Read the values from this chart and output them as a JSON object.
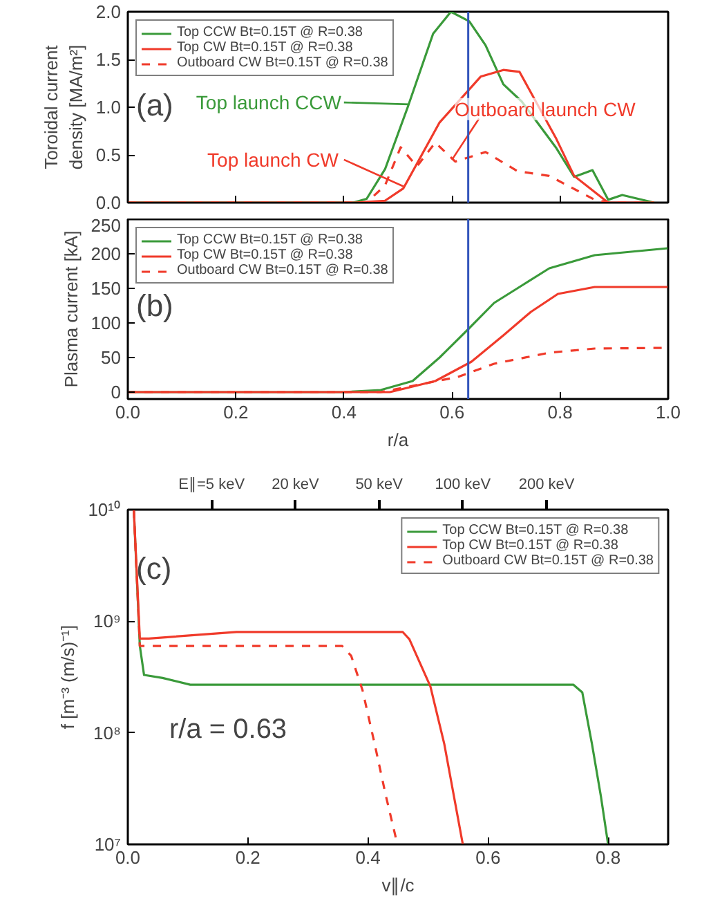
{
  "chart_data": [
    {
      "type": "line",
      "ylabel": "Toroidal current\ndensity [MA/m²]",
      "xlim": [
        0,
        1
      ],
      "ylim": [
        0,
        2.0
      ],
      "xticks": [
        0,
        0.2,
        0.4,
        0.6,
        0.8,
        1
      ],
      "yticks": [
        {
          "value": 0,
          "label": "0.0"
        },
        {
          "value": 0.5,
          "label": "0.5"
        },
        {
          "value": 1,
          "label": "1.0"
        },
        {
          "value": 1.5,
          "label": "1.5"
        },
        {
          "value": 2,
          "label": "2.0"
        }
      ],
      "tick_labels": "y",
      "legend": "top left",
      "grid": false,
      "series": [
        {
          "name": "Top CCW Bt=0.15T @ R=0.38",
          "color": "#3a9a3a",
          "line_style": "solid",
          "x": [
            0,
            0.417,
            0.442,
            0.476,
            0.518,
            0.565,
            0.598,
            0.632,
            0.662,
            0.695,
            0.729,
            0.792,
            0.826,
            0.86,
            0.889,
            0.915,
            0.974
          ],
          "values": [
            0,
            0,
            0.04,
            0.35,
            1.0,
            1.77,
            2.0,
            1.9,
            1.65,
            1.24,
            1.06,
            0.58,
            0.27,
            0.34,
            0.03,
            0.08,
            0
          ]
        },
        {
          "name": "Top CW Bt=0.15T @ R=0.38",
          "color": "#f03a2a",
          "line_style": "solid",
          "x": [
            0,
            0.42,
            0.476,
            0.51,
            0.577,
            0.653,
            0.695,
            0.725,
            0.792,
            0.826,
            0.889,
            0.974
          ],
          "values": [
            0,
            0,
            0.02,
            0.15,
            0.84,
            1.32,
            1.39,
            1.37,
            0.68,
            0.28,
            0,
            0
          ]
        },
        {
          "name": "Outboard CW Bt=0.15T @ R=0.38",
          "color": "#f03a2a",
          "line_style": "dashed",
          "x": [
            0,
            0.442,
            0.476,
            0.505,
            0.535,
            0.569,
            0.606,
            0.662,
            0.721,
            0.78,
            0.864,
            0.889,
            0.974
          ],
          "values": [
            0,
            0,
            0.18,
            0.58,
            0.38,
            0.63,
            0.43,
            0.53,
            0.33,
            0.28,
            0.03,
            0,
            0
          ]
        }
      ],
      "ref_lines": [
        {
          "axis": "x",
          "value": 0.63,
          "color": "#3355bb"
        }
      ],
      "annotations": [
        "(a)",
        "Top launch CCW",
        {
          "text": "Top launch CW",
          "x": 0.51,
          "y": 0.17
        },
        {
          "text": "Outboard launch CW",
          "x": 0.6,
          "y": 0.45
        }
      ]
    },
    {
      "type": "line",
      "ylabel": "Plasma current [kA]",
      "xlabel": "r/a",
      "xlim": [
        0,
        1
      ],
      "ylim": [
        -10,
        250
      ],
      "xticks": [
        {
          "value": 0,
          "label": "0.0"
        },
        {
          "value": 0.2,
          "label": "0.2"
        },
        {
          "value": 0.4,
          "label": "0.4"
        },
        {
          "value": 0.6,
          "label": "0.6"
        },
        {
          "value": 0.8,
          "label": "0.8"
        },
        {
          "value": 1,
          "label": "1.0"
        }
      ],
      "yticks": [
        0,
        50,
        100,
        150,
        200,
        250
      ],
      "legend": "top left",
      "grid": false,
      "series": [
        {
          "name": "Top CCW Bt=0.15T @ R=0.38",
          "color": "#3a9a3a",
          "line_style": "solid",
          "x": [
            0,
            0.4,
            0.468,
            0.527,
            0.577,
            0.63,
            0.678,
            0.729,
            0.78,
            0.864,
            0.999
          ],
          "values": [
            0,
            0,
            3,
            16,
            50,
            91,
            129,
            154,
            179,
            198,
            208
          ]
        },
        {
          "name": "Top CW Bt=0.15T @ R=0.38",
          "color": "#f03a2a",
          "line_style": "solid",
          "x": [
            0,
            0.485,
            0.569,
            0.636,
            0.695,
            0.746,
            0.796,
            0.864,
            0.999
          ],
          "values": [
            0,
            0,
            16,
            44,
            82,
            116,
            142,
            152,
            152
          ]
        },
        {
          "name": "Outboard CW Bt=0.15T @ R=0.38",
          "color": "#f03a2a",
          "line_style": "dashed",
          "x": [
            0,
            0.468,
            0.527,
            0.611,
            0.678,
            0.78,
            0.864,
            0.999
          ],
          "values": [
            0,
            0,
            9,
            22,
            41,
            57,
            63,
            64
          ]
        }
      ],
      "ref_lines": [
        {
          "axis": "x",
          "value": 0.63,
          "color": "#3355bb"
        }
      ],
      "annotations": [
        "(b)"
      ]
    },
    {
      "type": "line",
      "ylabel": "f [m⁻³ (m/s)⁻¹]",
      "xlabel": "v∥/c",
      "xlim": [
        0,
        0.9
      ],
      "ylim": [
        10000000.0,
        10000000000.0
      ],
      "log": "y",
      "xticks": [
        {
          "value": 0,
          "label": "0.0"
        },
        {
          "value": 0.2,
          "label": "0.2"
        },
        {
          "value": 0.4,
          "label": "0.4"
        },
        {
          "value": 0.6,
          "label": "0.6"
        },
        {
          "value": 0.8,
          "label": "0.8"
        }
      ],
      "yticks": [
        {
          "value": 10000000.0,
          "label": "10⁷"
        },
        {
          "value": 100000000.0,
          "label": "10⁸"
        },
        {
          "value": 1000000000.0,
          "label": "10⁹"
        },
        {
          "value": 10000000000.0,
          "label": "10¹⁰"
        }
      ],
      "legend": "top right",
      "grid": false,
      "series": [
        {
          "name": "Top CCW Bt=0.15T @ R=0.38",
          "color": "#3a9a3a",
          "line_style": "solid",
          "x": [
            0.01,
            0.02,
            0.027,
            0.058,
            0.104,
            0.742,
            0.757,
            0.773,
            0.788,
            0.8
          ],
          "values": [
            10000000000.0,
            600000000.0,
            330000000.0,
            310000000.0,
            270000000.0,
            270000000.0,
            230000000.0,
            80000000.0,
            27000000.0,
            10000000.0
          ]
        },
        {
          "name": "Top CW Bt=0.15T @ R=0.38",
          "color": "#f03a2a",
          "line_style": "solid",
          "x": [
            0.01,
            0.02,
            0.035,
            0.181,
            0.458,
            0.469,
            0.504,
            0.527,
            0.558
          ],
          "values": [
            10000000000.0,
            700000000.0,
            700000000.0,
            800000000.0,
            800000000.0,
            690000000.0,
            260000000.0,
            80000000.0,
            10000000.0
          ]
        },
        {
          "name": "Outboard CW Bt=0.15T @ R=0.38",
          "color": "#f03a2a",
          "line_style": "dashed",
          "x": [
            0.01,
            0.02,
            0.357,
            0.372,
            0.391,
            0.411,
            0.43,
            0.449
          ],
          "values": [
            10000000000.0,
            600000000.0,
            600000000.0,
            490000000.0,
            240000000.0,
            80000000.0,
            27000000.0,
            10000000.0
          ]
        }
      ],
      "annotations": [
        "(c)",
        "r/a = 0.63",
        "E∥=5 keV",
        "20 keV",
        "50 keV",
        "100 keV",
        "200 keV"
      ]
    }
  ]
}
